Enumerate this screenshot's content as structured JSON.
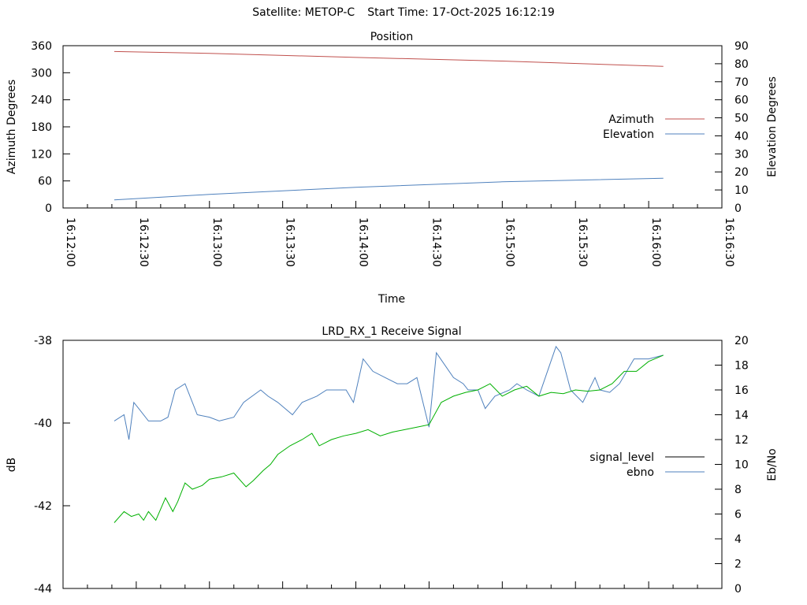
{
  "header": {
    "satellite": "Satellite: METOP-C",
    "start_time": "Start Time: 17-Oct-2025 16:12:19"
  },
  "chart_data": [
    {
      "type": "line",
      "title": "Position",
      "xlabel": "Time",
      "ylabel": "Azimuth Degrees",
      "y2label": "Elevation Degrees",
      "xlim": [
        "16:12:00",
        "16:16:30"
      ],
      "ylim": [
        0,
        360
      ],
      "y2lim": [
        0,
        90
      ],
      "x_ticks": [
        "16:12:00",
        "16:12:30",
        "16:13:00",
        "16:13:30",
        "16:14:00",
        "16:14:30",
        "16:15:00",
        "16:15:30",
        "16:16:00",
        "16:16:30"
      ],
      "y_ticks": [
        "0",
        "60",
        "120",
        "180",
        "240",
        "300",
        "360"
      ],
      "y2_ticks": [
        "0",
        "10",
        "20",
        "30",
        "40",
        "50",
        "60",
        "70",
        "80",
        "90"
      ],
      "legend": "right",
      "series": [
        {
          "name": "Azimuth",
          "axis": "y",
          "color": "#c0504d",
          "x": [
            "16:12:21",
            "16:13:00",
            "16:14:00",
            "16:15:00",
            "16:16:06"
          ],
          "y": [
            347,
            343,
            334,
            326,
            314
          ]
        },
        {
          "name": "Elevation",
          "axis": "y2",
          "color": "#4f81bd",
          "x": [
            "16:12:21",
            "16:13:00",
            "16:14:00",
            "16:15:00",
            "16:16:06"
          ],
          "y": [
            4.5,
            7.5,
            11.5,
            14.5,
            16.5
          ]
        }
      ]
    },
    {
      "type": "line",
      "title": "LRD_RX_1 Receive Signal",
      "xlabel": "",
      "ylabel": "dB",
      "y2label": "Eb/No",
      "xlim": [
        "16:12:00",
        "16:16:30"
      ],
      "ylim": [
        -44,
        -38
      ],
      "y2lim": [
        0,
        20
      ],
      "y_ticks": [
        "-44",
        "-42",
        "-40",
        "-38"
      ],
      "y2_ticks": [
        "0",
        "2",
        "4",
        "6",
        "8",
        "10",
        "12",
        "14",
        "16",
        "18",
        "20"
      ],
      "legend": "right",
      "series": [
        {
          "name": "signal_level",
          "axis": "y",
          "color": "#000000",
          "x": [],
          "y": []
        },
        {
          "name": "ebno",
          "axis": "y2",
          "color": "#4f81bd",
          "x": [
            "16:12:21",
            "16:12:25",
            "16:12:27",
            "16:12:29",
            "16:12:31",
            "16:12:35",
            "16:12:37",
            "16:12:40",
            "16:12:43",
            "16:12:46",
            "16:12:50",
            "16:12:55",
            "16:13:00",
            "16:13:04",
            "16:13:10",
            "16:13:14",
            "16:13:21",
            "16:13:24",
            "16:13:28",
            "16:13:34",
            "16:13:38",
            "16:13:44",
            "16:13:48",
            "16:13:56",
            "16:13:59",
            "16:14:03",
            "16:14:07",
            "16:14:12",
            "16:14:17",
            "16:14:21",
            "16:14:25",
            "16:14:30",
            "16:14:33",
            "16:14:40",
            "16:14:44",
            "16:14:46",
            "16:14:50",
            "16:14:53",
            "16:14:57",
            "16:15:03",
            "16:15:06",
            "16:15:10",
            "16:15:15",
            "16:15:22",
            "16:15:24",
            "16:15:28",
            "16:15:33",
            "16:15:38",
            "16:15:40",
            "16:15:44",
            "16:15:48",
            "16:15:54",
            "16:16:00",
            "16:16:06"
          ],
          "y": [
            13.5,
            14,
            12,
            15,
            14.5,
            13.5,
            13.5,
            13.5,
            13.8,
            16,
            16.5,
            14,
            13.8,
            13.5,
            13.8,
            15,
            16,
            15.5,
            15,
            14,
            15,
            15.5,
            16,
            16,
            15,
            18.5,
            17.5,
            17,
            16.5,
            16.5,
            17,
            13,
            19,
            17,
            16.5,
            16,
            16,
            14.5,
            15.5,
            16,
            16.5,
            16,
            15.5,
            19.5,
            19,
            16,
            15,
            17,
            16,
            15.8,
            16.5,
            18.5,
            18.5,
            18.8
          ]
        },
        {
          "name": "",
          "axis": "y2",
          "color": "#00b000",
          "x": [
            "16:12:21",
            "16:12:25",
            "16:12:28",
            "16:12:31",
            "16:12:33",
            "16:12:35",
            "16:12:38",
            "16:12:42",
            "16:12:45",
            "16:12:47",
            "16:12:50",
            "16:12:53",
            "16:12:57",
            "16:13:00",
            "16:13:05",
            "16:13:10",
            "16:13:15",
            "16:13:18",
            "16:13:22",
            "16:13:25",
            "16:13:28",
            "16:13:33",
            "16:13:38",
            "16:13:42",
            "16:13:45",
            "16:13:50",
            "16:13:55",
            "16:14:00",
            "16:14:05",
            "16:14:10",
            "16:14:15",
            "16:14:20",
            "16:14:25",
            "16:14:30",
            "16:14:35",
            "16:14:40",
            "16:14:45",
            "16:14:50",
            "16:14:55",
            "16:15:00",
            "16:15:05",
            "16:15:10",
            "16:15:15",
            "16:15:20",
            "16:15:25",
            "16:15:30",
            "16:15:35",
            "16:15:40",
            "16:15:45",
            "16:15:50",
            "16:15:55",
            "16:16:00",
            "16:16:06"
          ],
          "y": [
            5.3,
            6.2,
            5.8,
            6,
            5.5,
            6.2,
            5.5,
            7.3,
            6.2,
            7,
            8.5,
            8,
            8.3,
            8.8,
            9,
            9.3,
            8.2,
            8.7,
            9.5,
            10,
            10.8,
            11.5,
            12,
            12.5,
            11.5,
            12,
            12.3,
            12.5,
            12.8,
            12.3,
            12.6,
            12.8,
            13,
            13.2,
            15,
            15.5,
            15.8,
            16,
            16.5,
            15.5,
            16,
            16.3,
            15.5,
            15.8,
            15.7,
            16,
            15.9,
            16,
            16.5,
            17.5,
            17.5,
            18.3,
            18.8
          ]
        }
      ]
    }
  ]
}
